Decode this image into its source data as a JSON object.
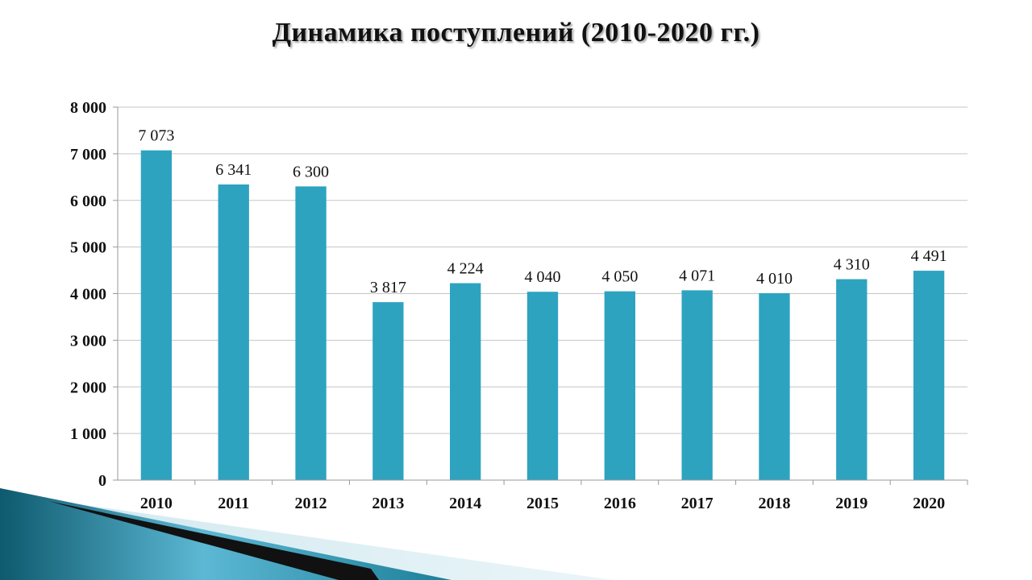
{
  "slide": {
    "title": "Динамика поступлений (2010-2020 гг.)"
  },
  "colors": {
    "bar": "#2da3c0",
    "grid": "#c6c6c6",
    "axis": "#999999",
    "text": "#111111"
  },
  "chart_data": {
    "type": "bar",
    "title": "Динамика поступлений (2010-2020 гг.)",
    "xlabel": "",
    "ylabel": "",
    "categories": [
      "2010",
      "2011",
      "2012",
      "2013",
      "2014",
      "2015",
      "2016",
      "2017",
      "2018",
      "2019",
      "2020"
    ],
    "values": [
      7073,
      6341,
      6300,
      3817,
      4224,
      4040,
      4050,
      4071,
      4010,
      4310,
      4491
    ],
    "value_labels": [
      "7 073",
      "6 341",
      "6 300",
      "3 817",
      "4 224",
      "4 040",
      "4 050",
      "4 071",
      "4 010",
      "4 310",
      "4 491"
    ],
    "ylim": [
      0,
      8000
    ],
    "yticks": [
      0,
      1000,
      2000,
      3000,
      4000,
      5000,
      6000,
      7000,
      8000
    ],
    "ytick_labels": [
      "0",
      "1 000",
      "2 000",
      "3 000",
      "4 000",
      "5 000",
      "6 000",
      "7 000",
      "8 000"
    ],
    "grid": true,
    "legend": "none"
  }
}
